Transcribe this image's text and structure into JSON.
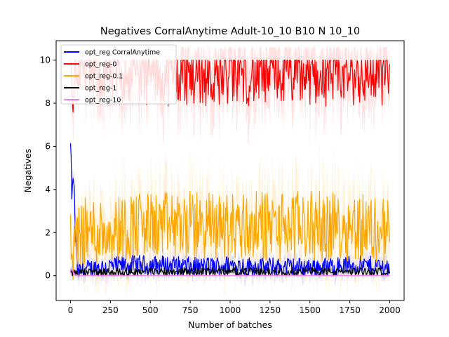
{
  "chart_data": {
    "type": "line",
    "title": "Negatives CorralAnytime Adult-10_10 B10 N 10_10",
    "xlabel": "Number of batches",
    "ylabel": "Negatives",
    "xlim": [
      -90,
      2090
    ],
    "ylim": [
      -1.15,
      10.9
    ],
    "xticks": [
      0,
      250,
      500,
      750,
      1000,
      1250,
      1500,
      1750,
      2000
    ],
    "yticks": [
      0,
      2,
      4,
      6,
      8,
      10
    ],
    "x_range": [
      0,
      2000
    ],
    "grid": false,
    "legend_position": "top-left",
    "series": [
      {
        "name": "opt_reg CorralAnytime",
        "color": "#0000ff",
        "band_color": "#c8c8ff",
        "x": [
          0,
          10,
          20,
          30,
          40,
          60,
          100,
          200,
          400,
          600,
          800,
          1000,
          1200,
          1400,
          1600,
          1800,
          2000
        ],
        "values": [
          6.0,
          3.5,
          4.6,
          2.3,
          0.3,
          0.2,
          0.3,
          0.4,
          0.5,
          0.5,
          0.4,
          0.5,
          0.4,
          0.4,
          0.4,
          0.5,
          0.4
        ],
        "spread": [
          0.5,
          0.8,
          0.6,
          0.8,
          0.6,
          0.5,
          0.5,
          0.5,
          0.5,
          0.5,
          0.5,
          0.5,
          0.5,
          0.5,
          0.5,
          0.5,
          0.5
        ]
      },
      {
        "name": "opt_reg-0",
        "color": "#ff0000",
        "band_color": "#ffc8c8",
        "x": [
          0,
          10,
          30,
          50,
          100,
          200,
          300,
          400,
          500,
          600,
          700,
          800,
          900,
          1000,
          1200,
          1400,
          1600,
          1800,
          2000
        ],
        "values": [
          10.0,
          8.0,
          9.6,
          9.6,
          9.5,
          9.4,
          9.4,
          9.4,
          9.3,
          9.3,
          9.3,
          9.3,
          9.3,
          9.3,
          9.3,
          9.3,
          9.3,
          9.3,
          9.3
        ],
        "spread": [
          0.5,
          1.5,
          1.0,
          1.2,
          1.4,
          1.6,
          1.6,
          1.6,
          1.6,
          1.6,
          1.6,
          1.6,
          1.6,
          1.6,
          1.6,
          1.6,
          1.6,
          1.6,
          1.6
        ]
      },
      {
        "name": "opt_reg-0.1",
        "color": "#ffa500",
        "band_color": "#ffe6b8",
        "x": [
          0,
          10,
          30,
          50,
          100,
          200,
          300,
          400,
          500,
          600,
          700,
          800,
          900,
          1000,
          1200,
          1400,
          1600,
          1800,
          2000
        ],
        "values": [
          2.5,
          0.5,
          1.5,
          2.0,
          2.0,
          2.1,
          2.2,
          2.3,
          2.3,
          2.3,
          2.3,
          2.3,
          2.3,
          2.3,
          2.3,
          2.3,
          2.3,
          2.3,
          2.0
        ],
        "spread": [
          1.5,
          1.0,
          1.5,
          1.8,
          1.8,
          1.8,
          1.8,
          1.8,
          1.8,
          1.8,
          1.8,
          1.8,
          1.8,
          1.8,
          1.8,
          1.8,
          1.8,
          1.8,
          1.8
        ]
      },
      {
        "name": "opt_reg-1",
        "color": "#000000",
        "band_color": "#bbbbbb",
        "x": [
          0,
          30,
          100,
          500,
          1000,
          1500,
          2000
        ],
        "values": [
          0.2,
          0.1,
          0.15,
          0.2,
          0.2,
          0.2,
          0.2
        ],
        "spread": [
          0.2,
          0.2,
          0.2,
          0.2,
          0.2,
          0.2,
          0.2
        ]
      },
      {
        "name": "opt_reg-10",
        "color": "#ee82ee",
        "band_color": "#f8d0f8",
        "x": [
          0,
          30,
          100,
          500,
          1000,
          1500,
          2000
        ],
        "values": [
          0.3,
          0.0,
          0.0,
          0.0,
          0.0,
          0.0,
          0.0
        ],
        "spread": [
          0.2,
          0.05,
          0.02,
          0.02,
          0.02,
          0.02,
          0.02
        ]
      }
    ]
  }
}
